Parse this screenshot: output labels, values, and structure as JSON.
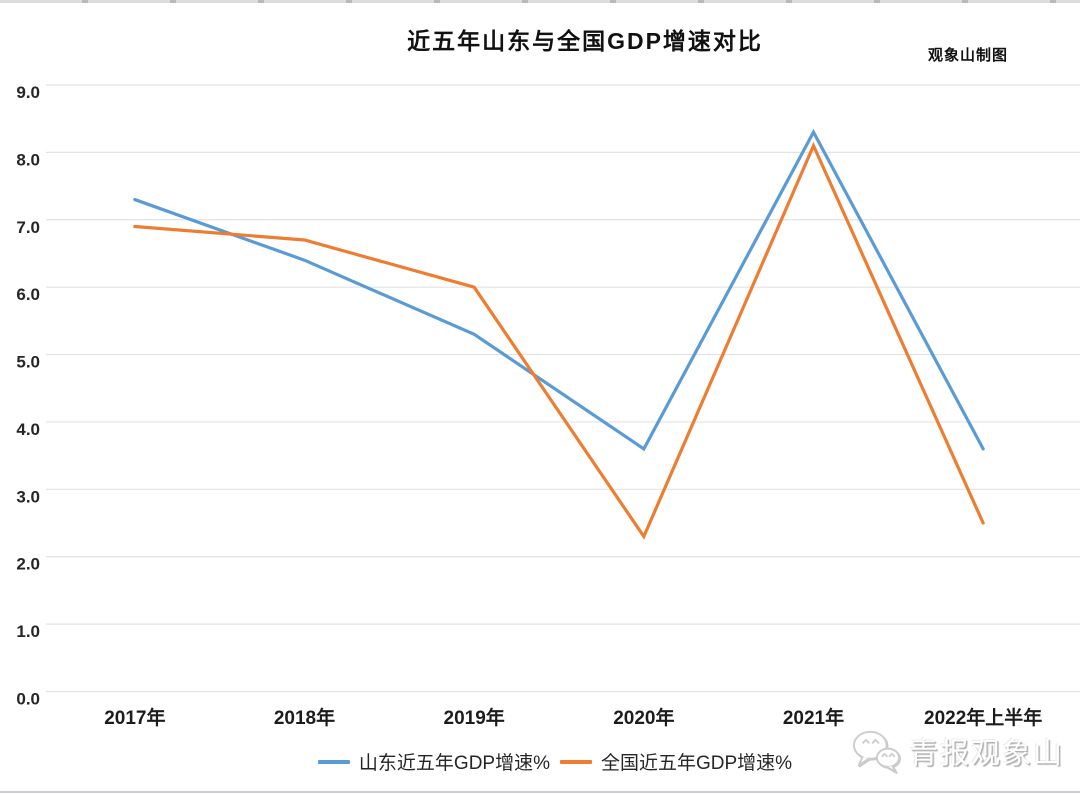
{
  "title": "近五年山东与全国GDP增速对比",
  "credit": "观象山制图",
  "watermark": {
    "icon": "wechat-icon",
    "label": "青报观象山"
  },
  "chart_data": {
    "type": "line",
    "title": "近五年山东与全国GDP增速对比",
    "categories": [
      "2017年",
      "2018年",
      "2019年",
      "2020年",
      "2021年",
      "2022年上半年"
    ],
    "series": [
      {
        "name": "山东近五年GDP增速%",
        "color": "#5B9BD5",
        "values": [
          7.3,
          6.4,
          5.3,
          3.6,
          8.3,
          3.6
        ]
      },
      {
        "name": "全国近五年GDP增速%",
        "color": "#ED7D31",
        "values": [
          6.9,
          6.7,
          6.0,
          2.3,
          8.1,
          2.5
        ]
      }
    ],
    "xlabel": "",
    "ylabel": "",
    "ylim": [
      0,
      9
    ],
    "ytick_step": 1,
    "ytick_labels": [
      "0.0",
      "1.0",
      "2.0",
      "3.0",
      "4.0",
      "5.0",
      "6.0",
      "7.0",
      "8.0",
      "9.0"
    ],
    "grid": true,
    "grid_color": "#e3e3e3",
    "legend_position": "bottom"
  }
}
